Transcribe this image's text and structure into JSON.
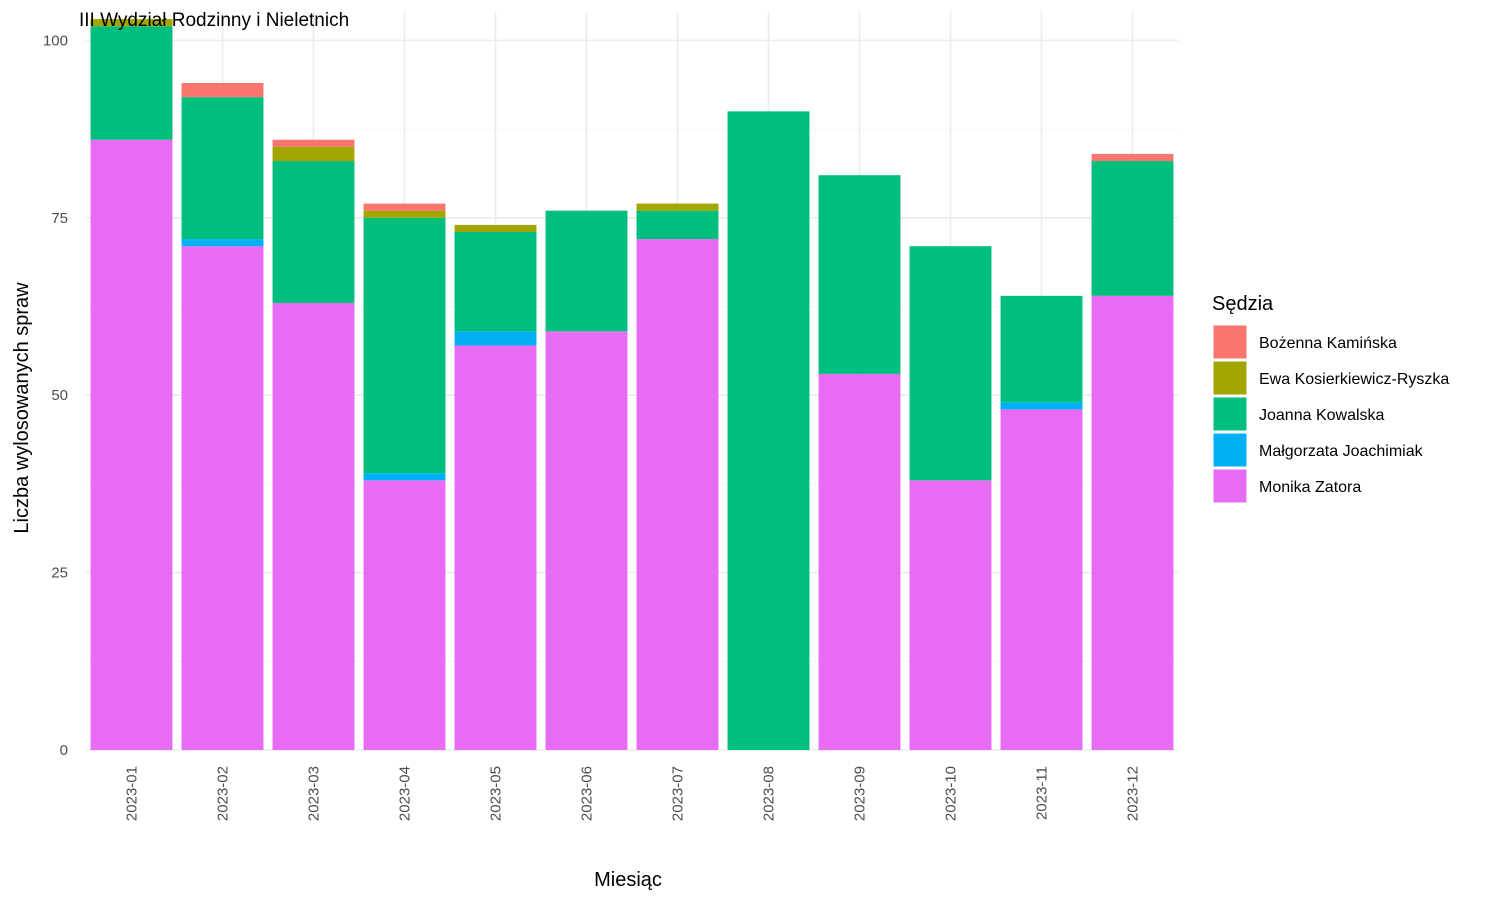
{
  "chart_data": {
    "type": "bar",
    "stacked": true,
    "title": "III Wydział Rodzinny i Nieletnich",
    "xlabel": "Miesiąc",
    "ylabel": "Liczba wylosowanych spraw",
    "ylim": [
      0,
      104
    ],
    "yticks": [
      "0",
      "25",
      "50",
      "75",
      "100"
    ],
    "grid": true,
    "legend": {
      "title": "Sędzia",
      "placement": "right"
    },
    "categories": [
      "2023-01",
      "2023-02",
      "2023-03",
      "2023-04",
      "2023-05",
      "2023-06",
      "2023-07",
      "2023-08",
      "2023-09",
      "2023-10",
      "2023-11",
      "2023-12"
    ],
    "series": [
      {
        "name": "Monika Zatora",
        "color": "#E76BF3",
        "values": [
          86,
          71,
          63,
          38,
          57,
          59,
          72,
          0,
          53,
          38,
          48,
          64
        ]
      },
      {
        "name": "Małgorzata Joachimiak",
        "color": "#00B0F6",
        "values": [
          0,
          1,
          0,
          1,
          2,
          0,
          0,
          0,
          0,
          0,
          1,
          0
        ]
      },
      {
        "name": "Joanna Kowalska",
        "color": "#00BF7D",
        "values": [
          16,
          20,
          20,
          36,
          14,
          17,
          4,
          90,
          28,
          33,
          15,
          19
        ]
      },
      {
        "name": "Ewa Kosierkiewicz-Ryszka",
        "color": "#A3A500",
        "values": [
          1,
          0,
          2,
          1,
          1,
          0,
          1,
          0,
          0,
          0,
          0,
          0
        ]
      },
      {
        "name": "Bożenna Kamińska",
        "color": "#F8766D",
        "values": [
          0,
          2,
          1,
          1,
          0,
          0,
          0,
          0,
          0,
          0,
          0,
          1
        ]
      }
    ],
    "legend_order": [
      "Bożenna Kamińska",
      "Ewa Kosierkiewicz-Ryszka",
      "Joanna Kowalska",
      "Małgorzata Joachimiak",
      "Monika Zatora"
    ]
  }
}
